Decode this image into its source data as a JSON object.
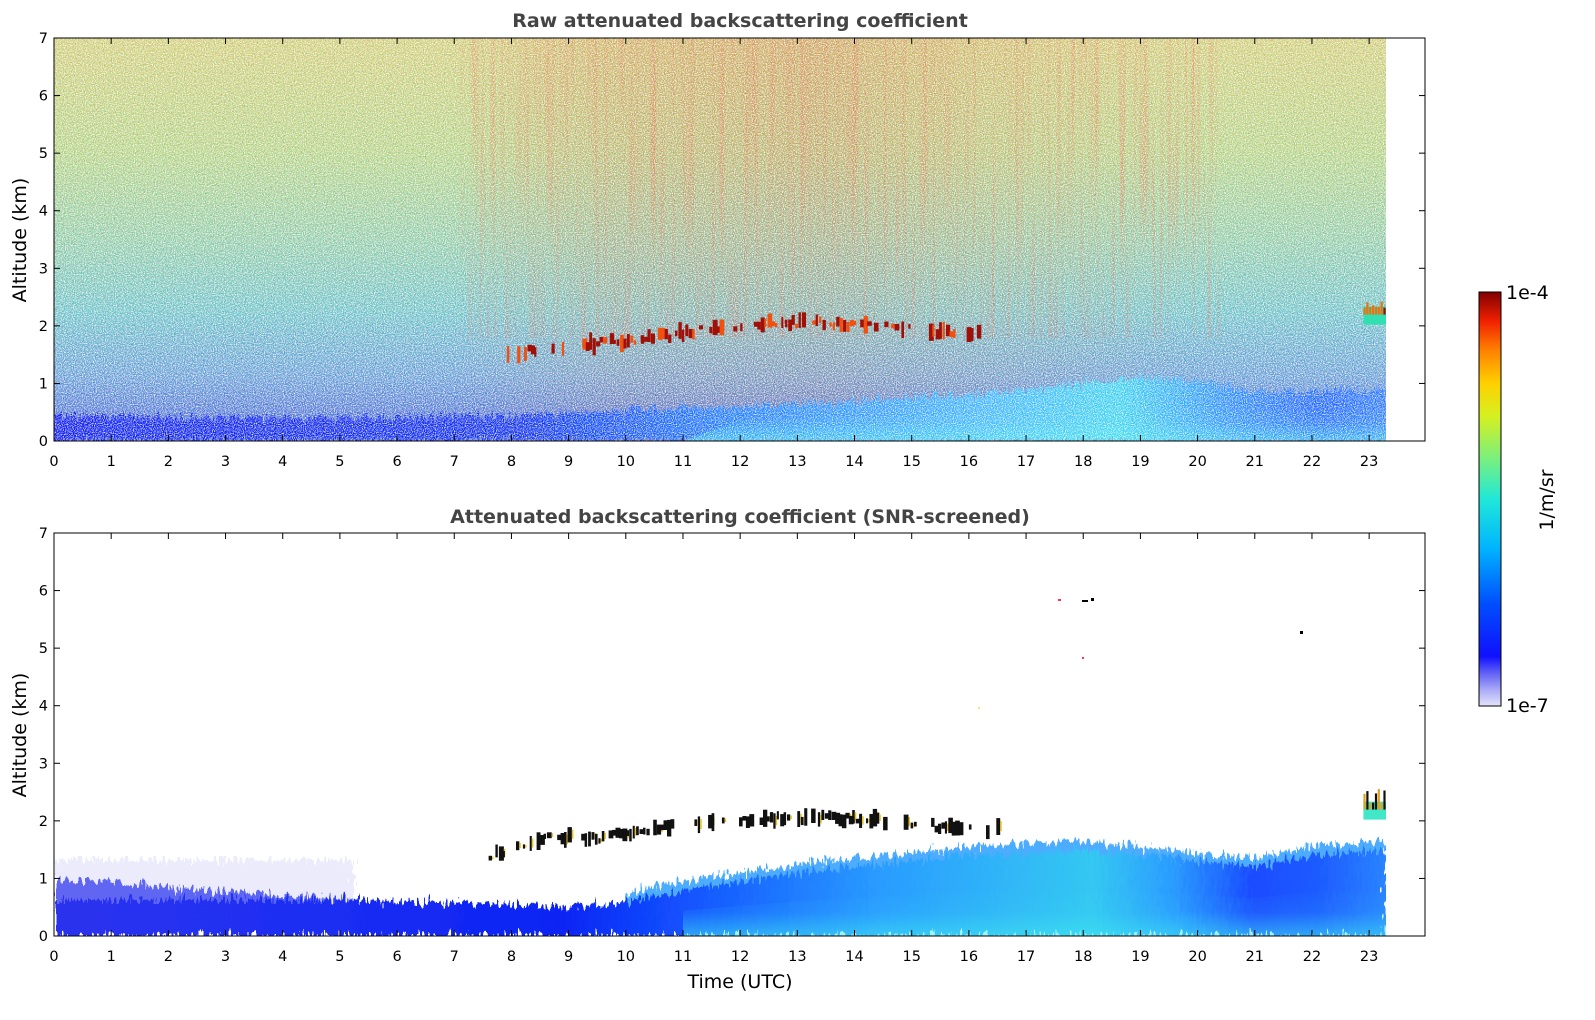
{
  "chart_data": [
    {
      "type": "heatmap",
      "title": "Raw attenuated backscattering coefficient",
      "xlabel": "",
      "ylabel": "Altitude (km)",
      "xlim": [
        0,
        24
      ],
      "ylim": [
        0,
        7
      ],
      "x_ticks": [
        "0",
        "1",
        "2",
        "3",
        "4",
        "5",
        "6",
        "7",
        "8",
        "9",
        "10",
        "11",
        "12",
        "13",
        "14",
        "15",
        "16",
        "17",
        "18",
        "19",
        "20",
        "21",
        "22",
        "23"
      ],
      "y_ticks": [
        "0",
        "1",
        "2",
        "3",
        "4",
        "5",
        "6",
        "7"
      ],
      "data_end_time": 23.3,
      "features": {
        "boundary_layer_top_km": [
          [
            0,
            0.45
          ],
          [
            4,
            0.4
          ],
          [
            8,
            0.45
          ],
          [
            12,
            0.6
          ],
          [
            16,
            0.8
          ],
          [
            19,
            1.1
          ],
          [
            20,
            1.05
          ],
          [
            21,
            0.85
          ],
          [
            23.3,
            0.9
          ]
        ],
        "cloud_layer_km": [
          [
            7.8,
            1.5
          ],
          [
            8.5,
            1.6
          ],
          [
            9.5,
            1.7
          ],
          [
            10.5,
            1.8
          ],
          [
            11.5,
            1.95
          ],
          [
            12.5,
            2.05
          ],
          [
            13.5,
            2.05
          ],
          [
            14.5,
            2.0
          ],
          [
            15.5,
            1.9
          ],
          [
            16.5,
            1.85
          ],
          [
            22.9,
            2.3
          ],
          [
            23.3,
            2.2
          ]
        ]
      },
      "grid": false
    },
    {
      "type": "heatmap",
      "title": "Attenuated backscattering coefficient (SNR-screened)",
      "xlabel": "Time (UTC)",
      "ylabel": "Altitude (km)",
      "xlim": [
        0,
        24
      ],
      "ylim": [
        0,
        7
      ],
      "x_ticks": [
        "0",
        "1",
        "2",
        "3",
        "4",
        "5",
        "6",
        "7",
        "8",
        "9",
        "10",
        "11",
        "12",
        "13",
        "14",
        "15",
        "16",
        "17",
        "18",
        "19",
        "20",
        "21",
        "22",
        "23"
      ],
      "y_ticks": [
        "0",
        "1",
        "2",
        "3",
        "4",
        "5",
        "6",
        "7"
      ],
      "data_end_time": 23.3,
      "features": {
        "boundary_layer_top_km": [
          [
            0,
            1.0
          ],
          [
            2,
            0.85
          ],
          [
            4,
            0.7
          ],
          [
            6,
            0.6
          ],
          [
            8,
            0.55
          ],
          [
            9,
            0.5
          ],
          [
            10,
            0.6
          ],
          [
            11,
            0.8
          ],
          [
            13,
            1.1
          ],
          [
            16,
            1.4
          ],
          [
            18,
            1.5
          ],
          [
            20,
            1.3
          ],
          [
            21,
            1.2
          ],
          [
            22,
            1.4
          ],
          [
            23.3,
            1.5
          ]
        ],
        "cloud_layer_km": [
          [
            7.6,
            1.4
          ],
          [
            8.5,
            1.7
          ],
          [
            9.5,
            1.7
          ],
          [
            10.5,
            1.85
          ],
          [
            11.6,
            2.0
          ],
          [
            12.5,
            2.05
          ],
          [
            13.5,
            2.05
          ],
          [
            14.5,
            2.0
          ],
          [
            15.5,
            1.9
          ],
          [
            16.5,
            1.85
          ],
          [
            22.9,
            2.3
          ],
          [
            23.3,
            2.2
          ]
        ]
      },
      "grid": false
    }
  ],
  "colorbar": {
    "label": "1/m/sr",
    "min_label": "1e-7",
    "max_label": "1e-4",
    "scale": "log",
    "colormap": "jet"
  }
}
